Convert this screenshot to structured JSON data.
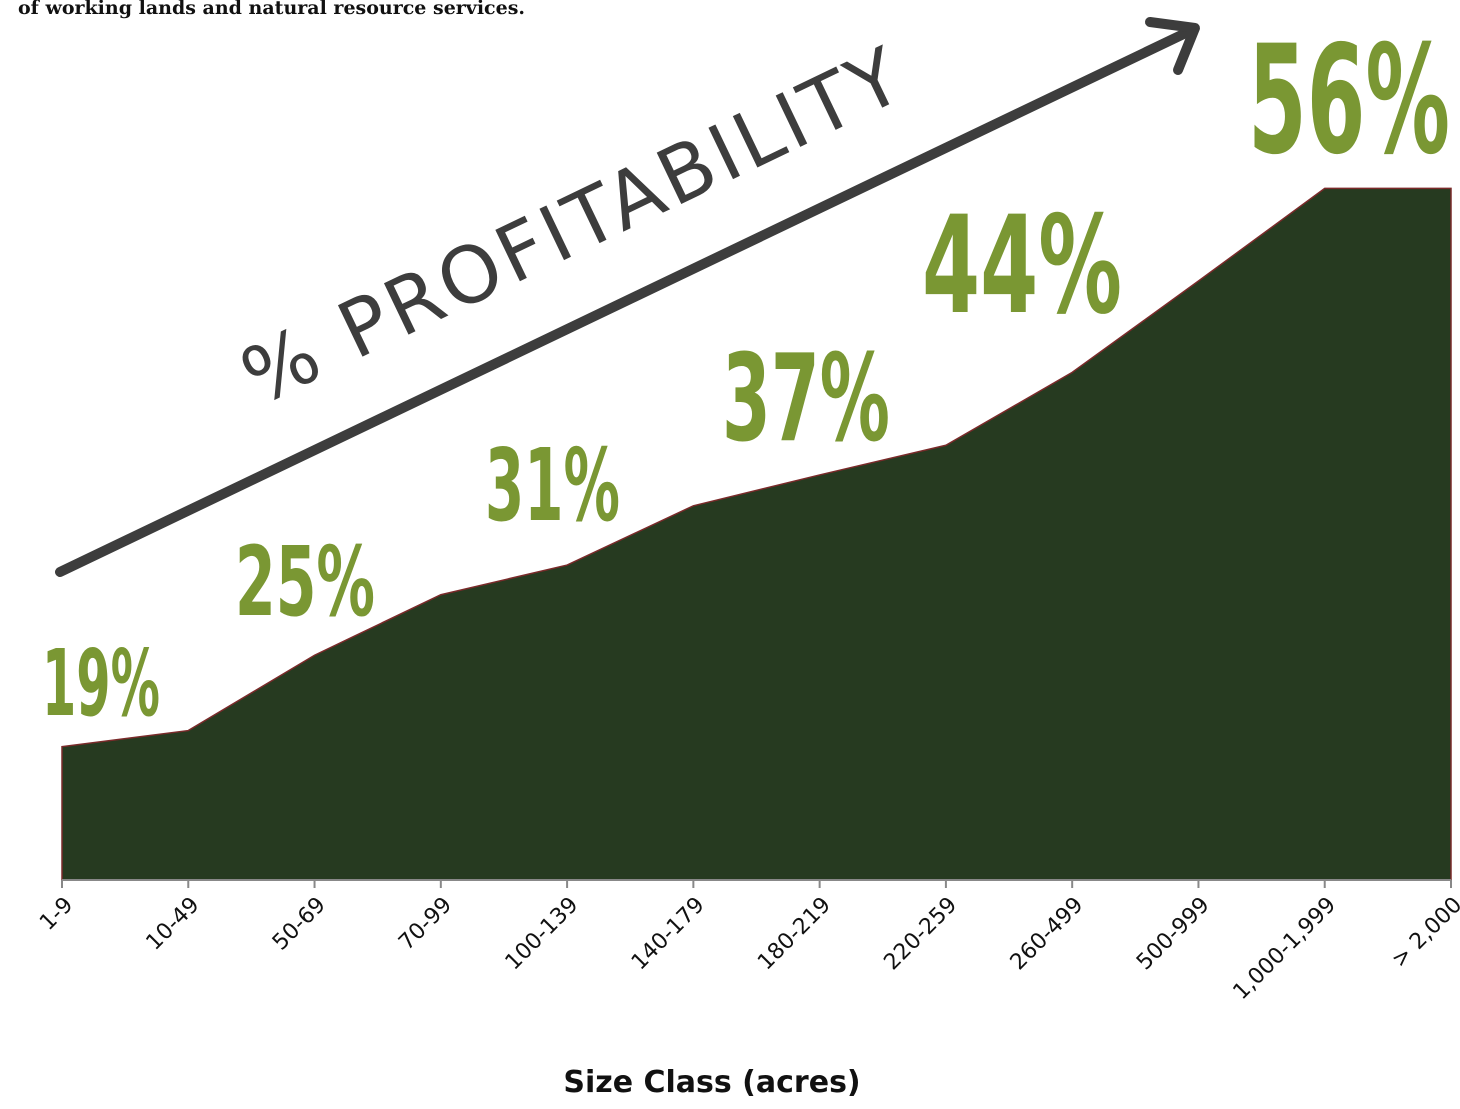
{
  "chart_data": {
    "type": "area",
    "caption": "of working lands and natural resource services.",
    "arrow_label": "% PROFITABILITY",
    "xlabel": "Size Class (acres)",
    "categories": [
      "1-9",
      "10-49",
      "50-69",
      "70-99",
      "100-139",
      "140-179",
      "180-219",
      "220-259",
      "260-499",
      "500-999",
      "1,000-1,999",
      "> 2,000"
    ],
    "values": [
      10.8,
      12.1,
      18.2,
      23.1,
      25.5,
      30.3,
      32.8,
      35.2,
      41.1,
      48.5,
      56,
      56
    ],
    "color": "#263a20",
    "ylim": [
      0,
      60
    ],
    "annotations": [
      "19%",
      "25%",
      "31%",
      "37%",
      "44%",
      "56%"
    ]
  }
}
